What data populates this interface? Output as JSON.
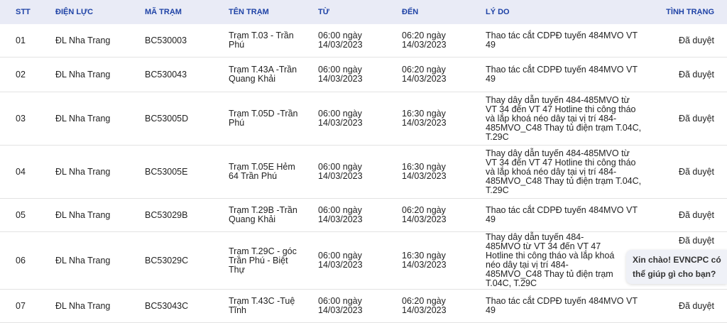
{
  "headers": [
    "STT",
    "ĐIỆN LỰC",
    "MÃ TRẠM",
    "TÊN TRẠM",
    "TỪ",
    "ĐẾN",
    "LÝ DO",
    "TÌNH TRẠNG"
  ],
  "rows": [
    {
      "stt": "01",
      "dl": "ĐL Nha Trang",
      "ma": "BC530003",
      "ten": "Trạm T.03 - Trần Phú",
      "tu": "06:00 ngày 14/03/2023",
      "den": "06:20 ngày 14/03/2023",
      "lydo": "Thao tác cắt CDPĐ tuyến 484MVO VT 49",
      "tt": "Đã duyệt"
    },
    {
      "stt": "02",
      "dl": "ĐL Nha Trang",
      "ma": "BC530043",
      "ten": "Trạm T.43A -Trần Quang Khải",
      "tu": "06:00 ngày 14/03/2023",
      "den": "06:20 ngày 14/03/2023",
      "lydo": "Thao tác cắt CDPĐ tuyến 484MVO VT 49",
      "tt": "Đã duyệt"
    },
    {
      "stt": "03",
      "dl": "ĐL Nha Trang",
      "ma": "BC53005D",
      "ten": "Trạm T.05D -Trần Phú",
      "tu": "06:00 ngày 14/03/2023",
      "den": "16:30 ngày 14/03/2023",
      "lydo": "Thay dây dẫn tuyến 484-485MVO từ VT 34 đến VT 47 Hotline thi công tháo và lắp khoá néo dây tại vị trí 484-485MVO_C48 Thay tủ điện trạm T.04C, T.29C",
      "tt": "Đã duyệt"
    },
    {
      "stt": "04",
      "dl": "ĐL Nha Trang",
      "ma": "BC53005E",
      "ten": "Trạm T.05E Hẻm 64 Trần Phú",
      "tu": "06:00 ngày 14/03/2023",
      "den": "16:30 ngày 14/03/2023",
      "lydo": "Thay dây dẫn tuyến 484-485MVO từ VT 34 đến VT 47 Hotline thi công tháo và lắp khoá néo dây tại vị trí 484-485MVO_C48 Thay tủ điện trạm T.04C, T.29C",
      "tt": "Đã duyệt"
    },
    {
      "stt": "05",
      "dl": "ĐL Nha Trang",
      "ma": "BC53029B",
      "ten": "Trạm T.29B -Trần Quang Khải",
      "tu": "06:00 ngày 14/03/2023",
      "den": "06:20 ngày 14/03/2023",
      "lydo": "Thao tác cắt CDPĐ tuyến 484MVO VT 49",
      "tt": "Đã duyệt"
    },
    {
      "stt": "06",
      "dl": "ĐL Nha Trang",
      "ma": "BC53029C",
      "ten": "Trạm T.29C - góc Trần Phú - Biệt Thự",
      "tu": "06:00 ngày 14/03/2023",
      "den": "16:30 ngày 14/03/2023",
      "lydo": "Thay dây dẫn tuyến 484-485MVO từ VT 34 đến VT 47 Hotline thi công tháo và lắp khoá néo dây tại vị trí 484-485MVO_C48 Thay tủ điện trạm T.04C, T.29C",
      "tt": "Đã duyệt"
    },
    {
      "stt": "07",
      "dl": "ĐL Nha Trang",
      "ma": "BC53043C",
      "ten": "Trạm T.43C -Tuệ Tĩnh",
      "tu": "06:00 ngày 14/03/2023",
      "den": "06:20 ngày 14/03/2023",
      "lydo": "Thao tác cắt CDPĐ tuyến 484MVO VT 49",
      "tt": "Đã duyệt"
    }
  ],
  "chat": {
    "message": "Xin chào! EVNCPC có thể giúp gì cho bạn?"
  }
}
